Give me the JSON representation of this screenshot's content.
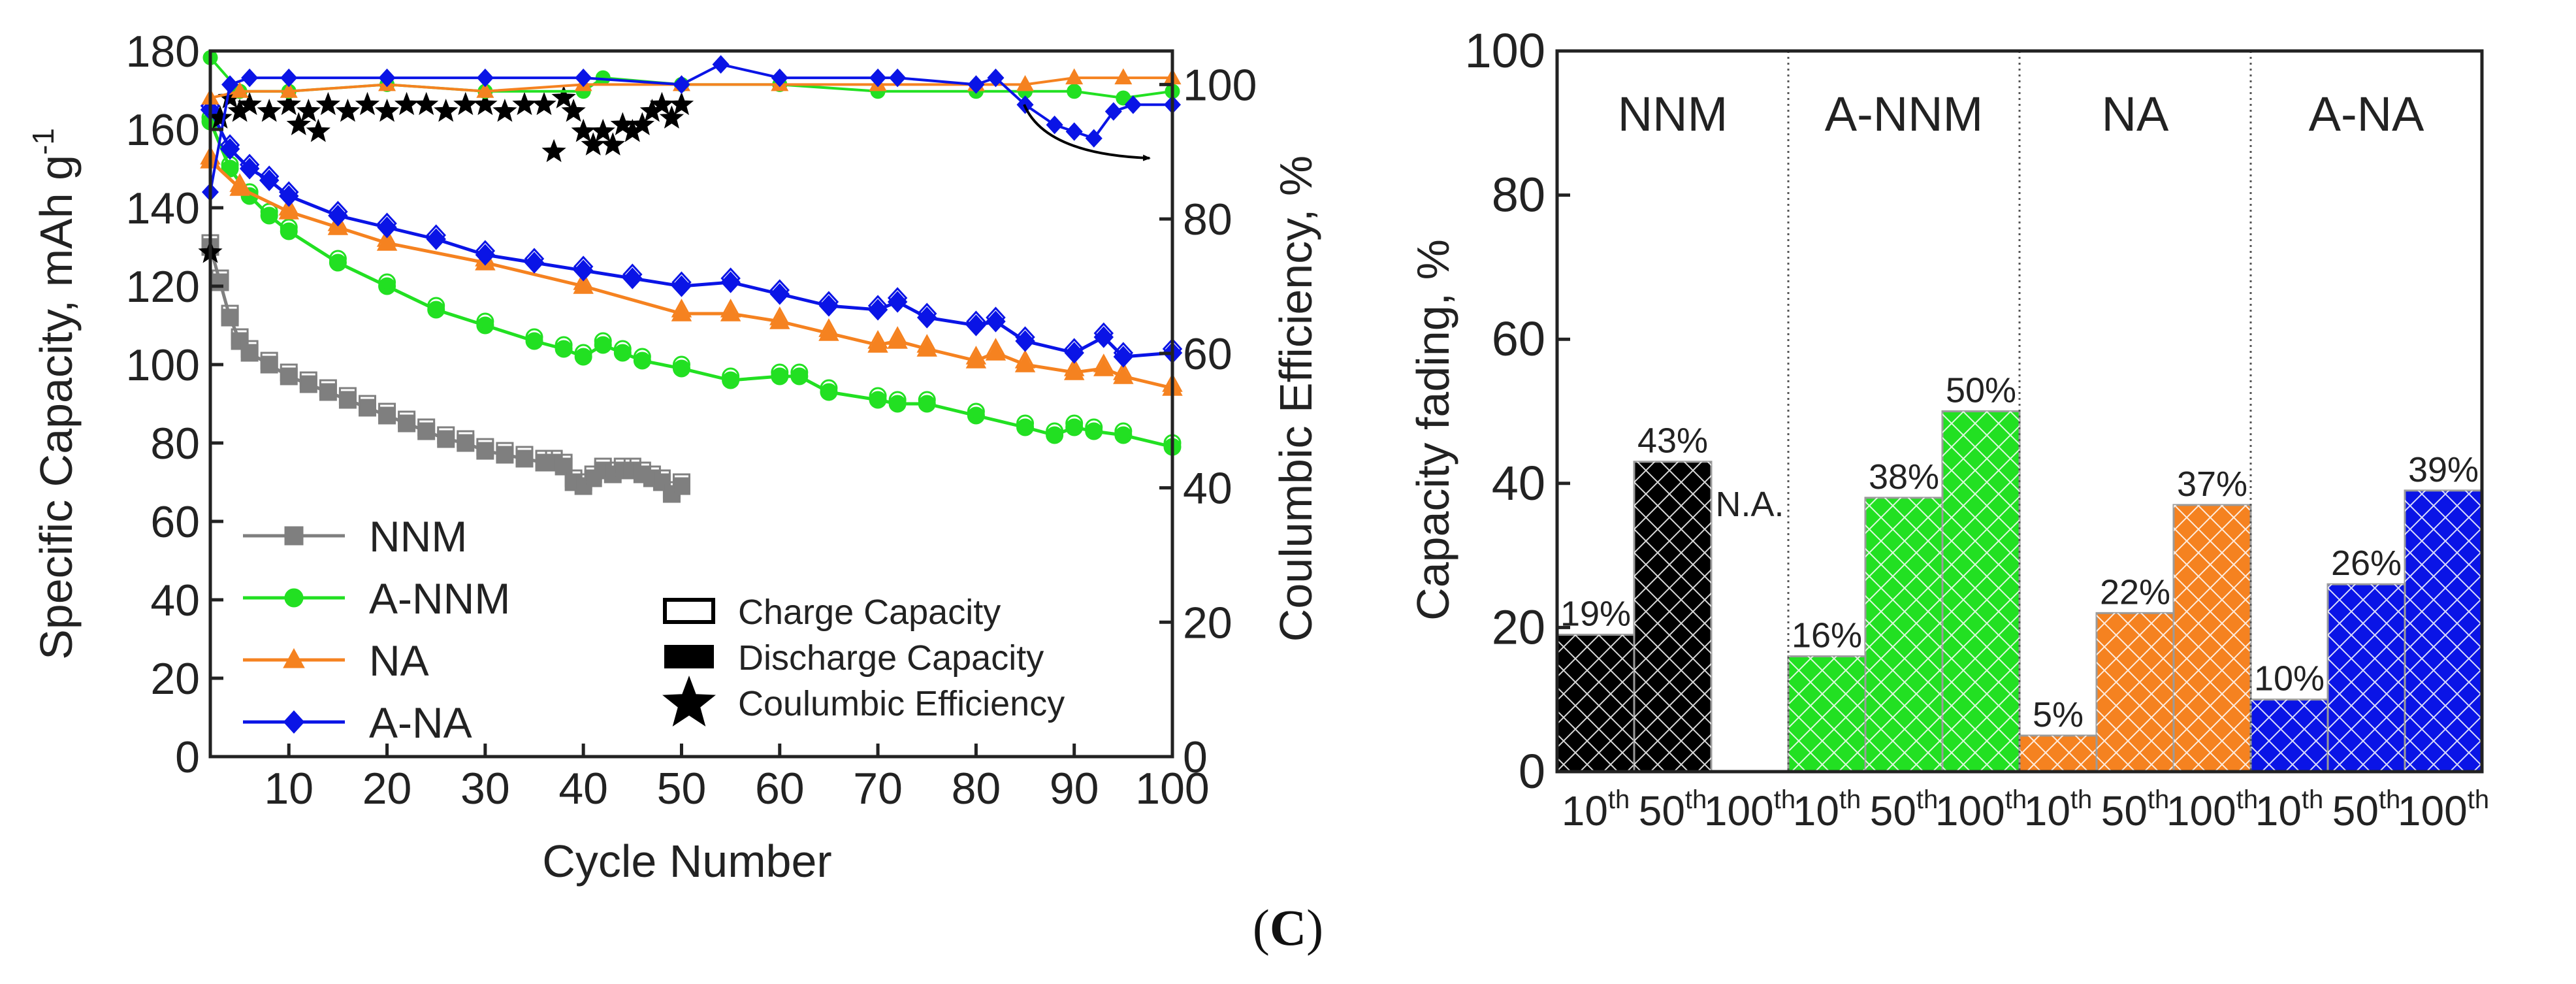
{
  "figure": {
    "caption_open": "(",
    "caption_letter": "C",
    "caption_close": ")"
  },
  "chart_data": [
    {
      "type": "line",
      "title": "",
      "xlabel": "Cycle Number",
      "ylabel": "Specific Capacity, mAh g",
      "ylabel_sup": "-1",
      "y2label": "Coulumbic Efficiency, %",
      "xlim": [
        2,
        100
      ],
      "ylim": [
        0,
        180
      ],
      "y2lim": [
        0,
        105
      ],
      "x_ticks": [
        10,
        20,
        30,
        40,
        50,
        60,
        70,
        80,
        90,
        100
      ],
      "y_ticks": [
        0,
        20,
        40,
        60,
        80,
        100,
        120,
        140,
        160,
        180
      ],
      "y2_ticks": [
        0,
        20,
        40,
        60,
        80,
        100
      ],
      "grid": false,
      "series": [
        {
          "name": "NNM",
          "color": "#7f7f7f",
          "marker": "square",
          "x": [
            2,
            3,
            4,
            5,
            6,
            8,
            10,
            12,
            14,
            16,
            18,
            20,
            22,
            24,
            26,
            28,
            30,
            32,
            34,
            36,
            37,
            38,
            39,
            40,
            41,
            42,
            43,
            44,
            45,
            46,
            47,
            48,
            49,
            50
          ],
          "values": [
            130,
            121,
            112,
            106,
            103,
            100,
            97,
            95,
            93,
            91,
            89,
            87,
            85,
            83,
            81,
            80,
            78,
            77,
            76,
            75,
            75,
            74,
            70,
            69,
            71,
            73,
            72,
            73,
            73,
            72,
            71,
            70,
            67,
            69
          ]
        },
        {
          "name": "A-NNM",
          "color": "#22e022",
          "marker": "circle",
          "x": [
            2,
            4,
            6,
            8,
            10,
            15,
            20,
            25,
            30,
            35,
            38,
            40,
            42,
            44,
            46,
            50,
            55,
            60,
            62,
            65,
            70,
            72,
            75,
            80,
            85,
            88,
            90,
            92,
            95,
            100
          ],
          "values": [
            162,
            150,
            143,
            138,
            134,
            126,
            120,
            114,
            110,
            106,
            104,
            102,
            105,
            103,
            101,
            99,
            96,
            97,
            97,
            93,
            91,
            90,
            90,
            87,
            84,
            82,
            84,
            83,
            82,
            79
          ]
        },
        {
          "name": "NA",
          "color": "#f58220",
          "marker": "triangle",
          "x": [
            2,
            5,
            10,
            15,
            20,
            30,
            40,
            50,
            55,
            60,
            65,
            70,
            72,
            75,
            80,
            82,
            85,
            90,
            93,
            95,
            100
          ],
          "values": [
            152,
            145,
            139,
            135,
            131,
            126,
            120,
            113,
            113,
            111,
            108,
            105,
            106,
            104,
            101,
            103,
            100,
            98,
            99,
            97,
            94
          ]
        },
        {
          "name": "A-NA",
          "color": "#0a14e6",
          "marker": "diamond",
          "x": [
            2,
            4,
            6,
            8,
            10,
            15,
            20,
            25,
            30,
            35,
            40,
            45,
            50,
            55,
            60,
            65,
            70,
            72,
            75,
            80,
            82,
            85,
            90,
            93,
            95,
            100
          ],
          "values": [
            165,
            155,
            150,
            147,
            143,
            138,
            135,
            132,
            128,
            126,
            124,
            122,
            120,
            121,
            118,
            115,
            114,
            116,
            112,
            110,
            111,
            106,
            103,
            107,
            102,
            103
          ]
        }
      ],
      "efficiency_series": [
        {
          "name": "NNM CE",
          "color": "#000000",
          "marker": "star",
          "x": [
            2,
            3,
            4,
            5,
            6,
            8,
            10,
            11,
            12,
            13,
            14,
            16,
            18,
            20,
            22,
            24,
            26,
            28,
            30,
            32,
            34,
            36,
            37,
            38,
            39,
            40,
            41,
            42,
            43,
            44,
            45,
            46,
            47,
            48,
            49,
            50
          ],
          "values": [
            75,
            95,
            98,
            96,
            97,
            96,
            97,
            94,
            96,
            93,
            97,
            96,
            97,
            96,
            97,
            97,
            96,
            97,
            97,
            96,
            97,
            97,
            90,
            98,
            96,
            93,
            91,
            93,
            91,
            94,
            93,
            94,
            96,
            97,
            95,
            97
          ]
        },
        {
          "name": "A-NNM CE",
          "color": "#22e022",
          "marker": "circle",
          "x": [
            2,
            5,
            10,
            20,
            30,
            40,
            42,
            50,
            60,
            70,
            80,
            85,
            90,
            95,
            100
          ],
          "values": [
            104,
            99,
            99,
            100,
            99,
            99,
            101,
            100,
            100,
            99,
            99,
            99,
            99,
            98,
            99
          ]
        },
        {
          "name": "NA CE",
          "color": "#f58220",
          "marker": "triangle",
          "x": [
            2,
            5,
            10,
            20,
            30,
            40,
            50,
            60,
            70,
            80,
            85,
            90,
            95,
            100
          ],
          "values": [
            98,
            99,
            99,
            100,
            99,
            100,
            100,
            100,
            100,
            100,
            100,
            101,
            101,
            101
          ]
        },
        {
          "name": "A-NA CE",
          "color": "#0a14e6",
          "marker": "diamond",
          "x": [
            2,
            4,
            6,
            10,
            20,
            30,
            40,
            50,
            54,
            60,
            70,
            72,
            80,
            82,
            85,
            88,
            90,
            92,
            94,
            96,
            100
          ],
          "values": [
            84,
            100,
            101,
            101,
            101,
            101,
            101,
            100,
            103,
            101,
            101,
            101,
            100,
            101,
            97,
            94,
            93,
            92,
            96,
            97,
            97
          ]
        }
      ],
      "legend": [
        {
          "label": "NNM",
          "color": "#7f7f7f",
          "marker": "square"
        },
        {
          "label": "A-NNM",
          "color": "#22e022",
          "marker": "circle"
        },
        {
          "label": "NA",
          "color": "#f58220",
          "marker": "triangle"
        },
        {
          "label": "A-NA",
          "color": "#0a14e6",
          "marker": "diamond"
        }
      ],
      "marker_legend": [
        {
          "label": "Charge Capacity",
          "marker": "open-square"
        },
        {
          "label": "Discharge Capacity",
          "marker": "filled-square"
        },
        {
          "label": "Coulumbic Efficiency",
          "marker": "star"
        }
      ],
      "legend_position": "bottom-left"
    },
    {
      "type": "bar",
      "title": "",
      "xlabel": "",
      "ylabel": "Capacity fading, %",
      "ylim": [
        0,
        100
      ],
      "y_ticks": [
        0,
        20,
        40,
        60,
        80,
        100
      ],
      "grid": false,
      "categories": [
        "10",
        "50",
        "100"
      ],
      "category_sup": "th",
      "groups": [
        {
          "name": "NNM",
          "color": "#000000",
          "values": [
            19,
            43,
            null
          ],
          "labels": [
            "19%",
            "43%",
            "N.A."
          ]
        },
        {
          "name": "A-NNM",
          "color": "#22e022",
          "values": [
            16,
            38,
            50
          ],
          "labels": [
            "16%",
            "38%",
            "50%"
          ]
        },
        {
          "name": "NA",
          "color": "#f58220",
          "values": [
            5,
            22,
            37
          ],
          "labels": [
            "5%",
            "22%",
            "37%"
          ]
        },
        {
          "name": "A-NA",
          "color": "#0a14e6",
          "values": [
            10,
            26,
            39
          ],
          "labels": [
            "10%",
            "26%",
            "39%"
          ]
        }
      ]
    }
  ]
}
